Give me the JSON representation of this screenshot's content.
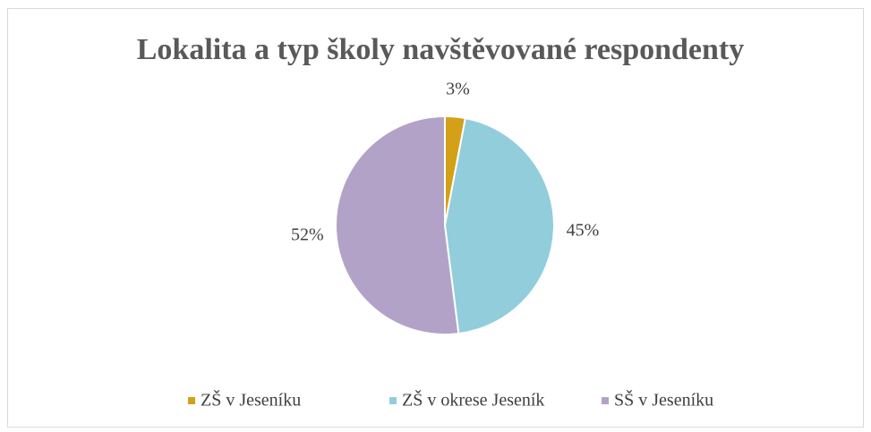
{
  "chart_data": {
    "type": "pie",
    "title": "Lokalita a typ školy navštěvované respondenty",
    "categories": [
      "ZŠ v Jeseníku",
      "ZŠ v okrese Jeseník",
      "SŠ v Jeseníku"
    ],
    "values": [
      3,
      45,
      52
    ],
    "value_labels": [
      "3%",
      "45%",
      "52%"
    ],
    "colors": [
      "#d4a017",
      "#92cddc",
      "#b3a2c7"
    ],
    "legend": "bottom"
  }
}
